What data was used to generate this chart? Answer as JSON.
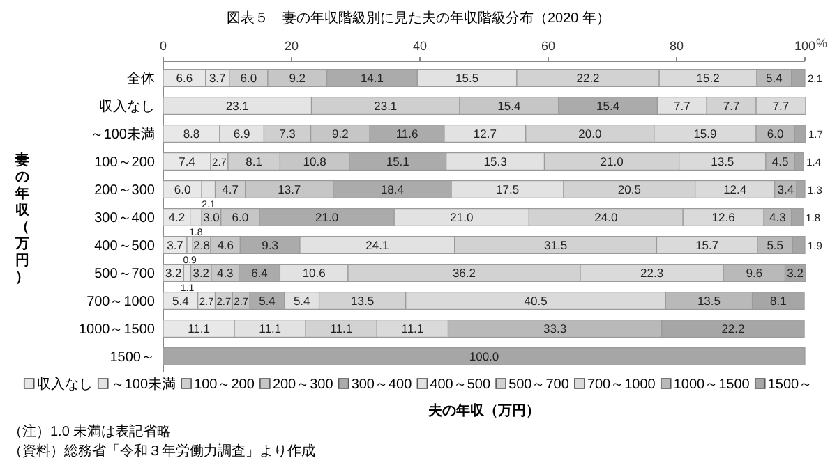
{
  "chart_data": {
    "type": "bar",
    "orientation": "horizontal",
    "stacked": true,
    "title": "図表５　妻の年収階級別に見た夫の年収階級分布（2020 年）",
    "xlabel": "夫の年収（万円）",
    "ylabel": "妻の年収（万円）",
    "legend": "bottom",
    "grid": false,
    "categories": [
      "全体",
      "収入なし",
      "～100未満",
      "100～200",
      "200～300",
      "300～400",
      "400～500",
      "500～700",
      "700～1000",
      "1000～1500",
      "1500～"
    ],
    "xlim": [
      0,
      100
    ],
    "xticks": [
      0,
      20,
      40,
      60,
      80,
      100
    ],
    "series": [
      {
        "name": "収入なし",
        "color": "#e8e8e8",
        "values": [
          6.6,
          0,
          8.8,
          7.4,
          6.0,
          4.2,
          3.7,
          3.2,
          5.4,
          11.1,
          0
        ],
        "value_labels": [
          "6.6",
          null,
          "8.8",
          "7.4",
          "6.0",
          "4.2",
          "3.7",
          "3.2",
          "5.4",
          "11.1",
          null
        ]
      },
      {
        "name": "～100未満",
        "color": "#e4e4e4",
        "values": [
          3.7,
          23.1,
          6.9,
          2.7,
          2.1,
          1.8,
          0.9,
          1.1,
          2.7,
          0,
          0
        ],
        "value_labels": [
          "3.7",
          "23.1",
          "6.9",
          "2.7",
          "2.1",
          "1.8",
          "0.9",
          "1.1",
          "2.7",
          null,
          null
        ]
      },
      {
        "name": "100～200",
        "color": "#cfcfcf",
        "values": [
          6.0,
          23.1,
          7.3,
          8.1,
          4.7,
          3.0,
          2.8,
          3.2,
          2.7,
          0,
          0
        ],
        "value_labels": [
          "6.0",
          "23.1",
          "7.3",
          "8.1",
          "4.7",
          "3.0",
          "2.8",
          "3.2",
          "2.7",
          null,
          null
        ]
      },
      {
        "name": "200～300",
        "color": "#c6c6c6",
        "values": [
          9.2,
          15.4,
          9.2,
          10.8,
          13.7,
          6.0,
          4.6,
          4.3,
          2.7,
          0,
          0
        ],
        "value_labels": [
          "9.2",
          "15.4",
          "9.2",
          "10.8",
          "13.7",
          "6.0",
          "4.6",
          "4.3",
          "2.7",
          null,
          null
        ]
      },
      {
        "name": "300～400",
        "color": "#ababab",
        "values": [
          14.1,
          15.4,
          11.6,
          15.1,
          18.4,
          21.0,
          9.3,
          6.4,
          5.4,
          0,
          0
        ],
        "value_labels": [
          "14.1",
          "15.4",
          "11.6",
          "15.1",
          "18.4",
          "21.0",
          "9.3",
          "6.4",
          "5.4",
          null,
          null
        ]
      },
      {
        "name": "400～500",
        "color": "#e2e2e2",
        "values": [
          15.5,
          7.7,
          12.7,
          15.3,
          17.5,
          21.0,
          24.1,
          10.6,
          5.4,
          11.1,
          0
        ],
        "value_labels": [
          "15.5",
          "7.7",
          "12.7",
          "15.3",
          "17.5",
          "21.0",
          "24.1",
          "10.6",
          "5.4",
          "11.1",
          null
        ]
      },
      {
        "name": "500～700",
        "color": "#d2d2d2",
        "values": [
          22.2,
          7.7,
          20.0,
          21.0,
          20.5,
          24.0,
          31.5,
          36.2,
          13.5,
          11.1,
          0
        ],
        "value_labels": [
          "22.2",
          "7.7",
          "20.0",
          "21.0",
          "20.5",
          "24.0",
          "31.5",
          "36.2",
          "13.5",
          "11.1",
          null
        ]
      },
      {
        "name": "700～1000",
        "color": "#dadada",
        "values": [
          15.2,
          7.7,
          15.9,
          13.5,
          12.4,
          12.6,
          15.7,
          22.3,
          40.5,
          11.1,
          0
        ],
        "value_labels": [
          "15.2",
          "7.7",
          "15.9",
          "13.5",
          "12.4",
          "12.6",
          "15.7",
          "22.3",
          "40.5",
          "11.1",
          null
        ]
      },
      {
        "name": "1000～1500",
        "color": "#b9b9b9",
        "values": [
          5.4,
          0,
          6.0,
          4.5,
          3.4,
          4.3,
          5.5,
          9.6,
          13.5,
          33.3,
          0
        ],
        "value_labels": [
          "5.4",
          null,
          "6.0",
          "4.5",
          "3.4",
          "4.3",
          "5.5",
          "9.6",
          "13.5",
          "33.3",
          null
        ]
      },
      {
        "name": "1500～",
        "color": "#a6a6a6",
        "values": [
          2.1,
          0,
          1.7,
          1.4,
          1.3,
          1.8,
          1.9,
          3.2,
          8.1,
          22.2,
          100.0
        ],
        "value_labels": [
          "2.1",
          null,
          "1.7",
          "1.4",
          "1.3",
          "1.8",
          "1.9",
          "3.2",
          "8.1",
          "22.2",
          "100.0"
        ]
      }
    ],
    "annotations": [
      "%",
      "（注）1.0 未満は表記省略",
      "（資料）総務省「令和３年労働力調査」より作成"
    ]
  }
}
